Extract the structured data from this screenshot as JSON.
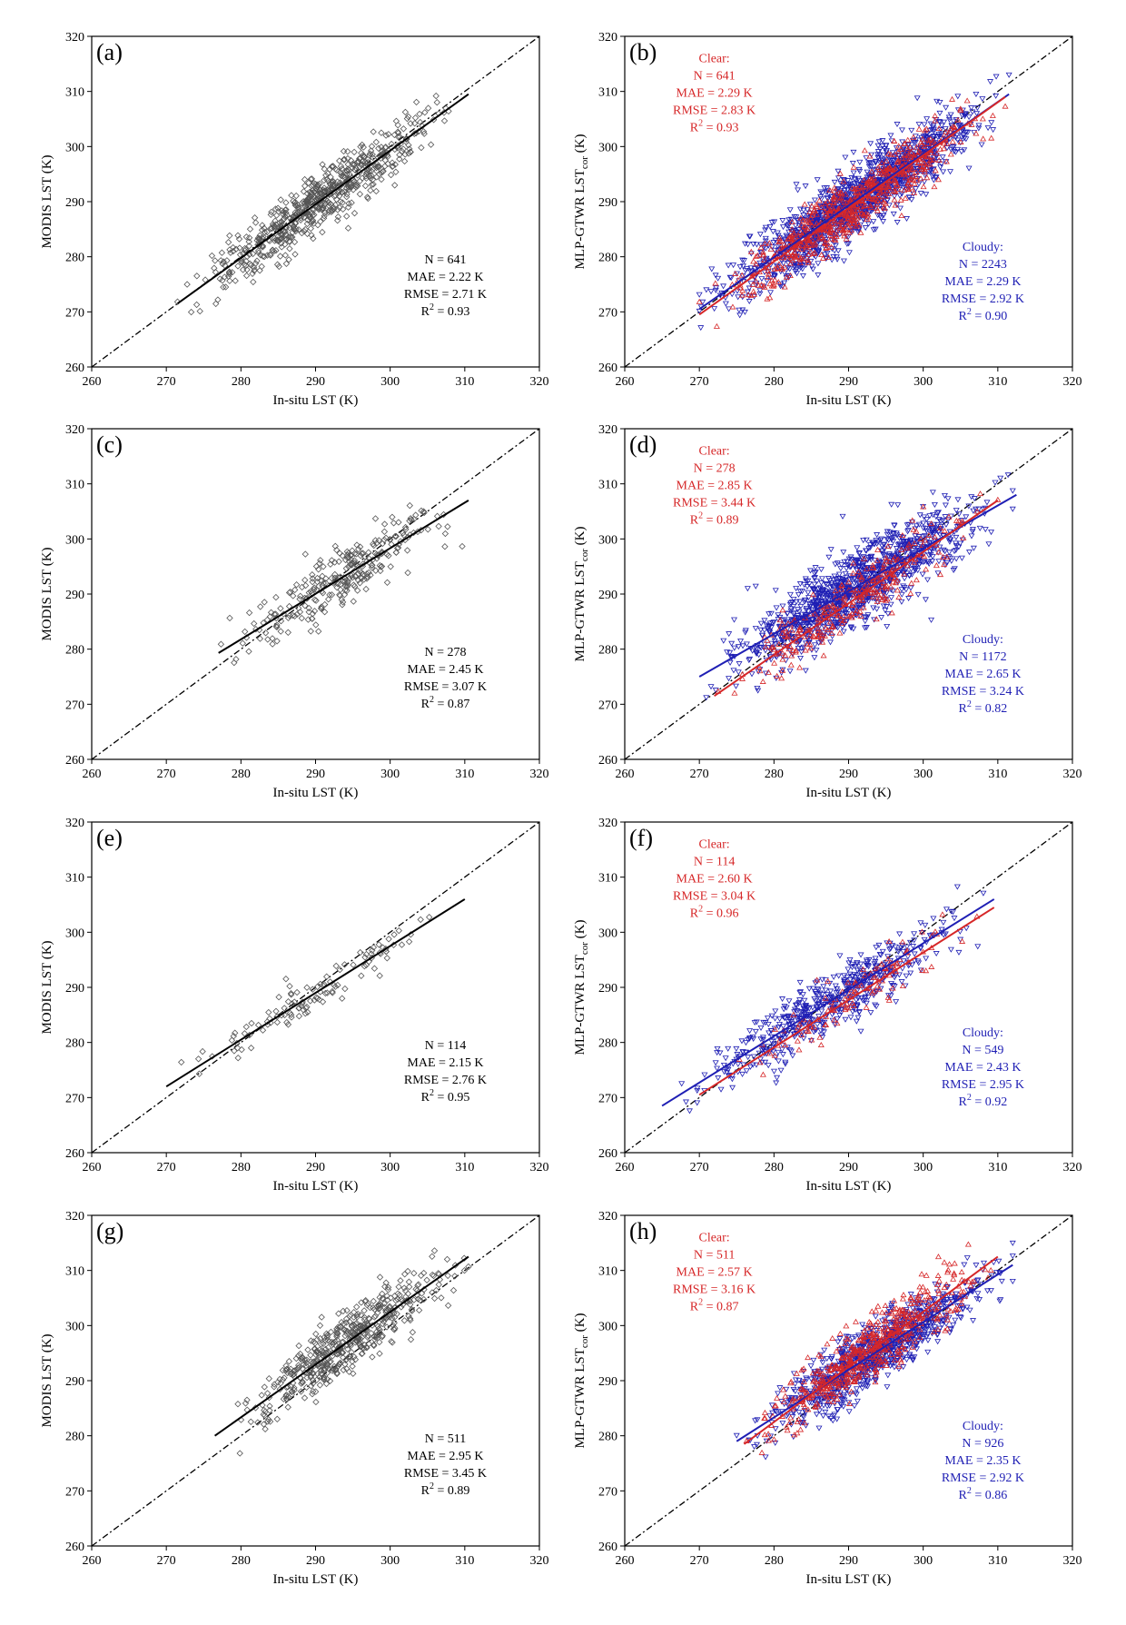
{
  "figure": {
    "x_label": "In-situ LST (K)",
    "y_label_modis": "MODIS LST (K)",
    "y_label_mlp_main": "MLP-GTWR LST",
    "y_label_mlp_sub": "cor",
    "y_label_mlp_unit": " (K)",
    "colors": {
      "clear": "#d62728",
      "cloudy": "#1f1fb4",
      "modis": "#555555"
    }
  },
  "chart_data": [
    {
      "type": "scatter",
      "panel": "(a)",
      "method": "MODIS",
      "xlim": [
        260,
        320
      ],
      "ylim": [
        260,
        320
      ],
      "xticks": [
        260,
        270,
        280,
        290,
        300,
        310,
        320
      ],
      "yticks": [
        260,
        270,
        280,
        290,
        300,
        310,
        320
      ],
      "xlabel": "In-situ LST (K)",
      "ylabel": "MODIS LST (K)",
      "one_to_one": true,
      "series": [
        {
          "style": "modis",
          "n_value": 641,
          "x_range": [
            271.5,
            310.5
          ],
          "spread": 3.6,
          "fit": [
            [
              271.5,
              271.5
            ],
            [
              310.5,
              309.5
            ]
          ]
        }
      ],
      "stats": [
        {
          "style": "modis",
          "n_label": "N = 641",
          "mae": "MAE = 2.22 K",
          "rmse": "RMSE = 2.71 K",
          "r2_main": "R",
          "r2_sup": "2",
          "r2_value": " = 0.93"
        }
      ]
    },
    {
      "type": "scatter",
      "panel": "(b)",
      "method": "MLP-GTWR",
      "xlim": [
        260,
        320
      ],
      "ylim": [
        260,
        320
      ],
      "xticks": [
        260,
        270,
        280,
        290,
        300,
        310,
        320
      ],
      "yticks": [
        260,
        270,
        280,
        290,
        300,
        310,
        320
      ],
      "xlabel": "In-situ LST (K)",
      "ylabel": "MLP-GTWR LSTcor (K)",
      "one_to_one": true,
      "series": [
        {
          "style": "cloudy",
          "n_value": 2243,
          "x_range": [
            270,
            311.5
          ],
          "spread": 4.2,
          "fit": [
            [
              270,
              270.5
            ],
            [
              311.5,
              309.5
            ]
          ]
        },
        {
          "style": "clear",
          "n_value": 641,
          "x_range": [
            270,
            311
          ],
          "spread": 3.6,
          "fit": [
            [
              270,
              269.5
            ],
            [
              311,
              309
            ]
          ]
        }
      ],
      "stats": [
        {
          "style": "clear",
          "title": "Clear:",
          "n_label": "N = 641",
          "mae": "MAE = 2.29 K",
          "rmse": "RMSE = 2.83 K",
          "r2_main": "R",
          "r2_sup": "2",
          "r2_value": " = 0.93"
        },
        {
          "style": "cloudy",
          "title": "Cloudy:",
          "n_label": "N = 2243",
          "mae": "MAE = 2.29 K",
          "rmse": "RMSE = 2.92 K",
          "r2_main": "R",
          "r2_sup": "2",
          "r2_value": " = 0.90"
        }
      ]
    },
    {
      "type": "scatter",
      "panel": "(c)",
      "method": "MODIS",
      "xlim": [
        260,
        320
      ],
      "ylim": [
        260,
        320
      ],
      "xticks": [
        260,
        270,
        280,
        290,
        300,
        310,
        320
      ],
      "yticks": [
        260,
        270,
        280,
        290,
        300,
        310,
        320
      ],
      "xlabel": "In-situ LST (K)",
      "ylabel": "MODIS LST (K)",
      "one_to_one": true,
      "series": [
        {
          "style": "modis",
          "n_value": 278,
          "x_range": [
            277,
            310
          ],
          "spread": 3.6,
          "fit": [
            [
              277,
              279.3
            ],
            [
              310.5,
              307
            ]
          ]
        }
      ],
      "stats": [
        {
          "style": "modis",
          "n_label": "N = 278",
          "mae": "MAE = 2.45 K",
          "rmse": "RMSE = 3.07 K",
          "r2_main": "R",
          "r2_sup": "2",
          "r2_value": " = 0.87"
        }
      ]
    },
    {
      "type": "scatter",
      "panel": "(d)",
      "method": "MLP-GTWR",
      "xlim": [
        260,
        320
      ],
      "ylim": [
        260,
        320
      ],
      "xticks": [
        260,
        270,
        280,
        290,
        300,
        310,
        320
      ],
      "yticks": [
        260,
        270,
        280,
        290,
        300,
        310,
        320
      ],
      "xlabel": "In-situ LST (K)",
      "ylabel": "MLP-GTWR LSTcor (K)",
      "one_to_one": true,
      "series": [
        {
          "style": "cloudy",
          "n_value": 1172,
          "x_range": [
            270,
            312
          ],
          "spread": 4.6,
          "fit": [
            [
              270,
              275
            ],
            [
              312.5,
              308
            ]
          ]
        },
        {
          "style": "clear",
          "n_value": 278,
          "x_range": [
            272,
            310
          ],
          "spread": 4.0,
          "fit": [
            [
              272,
              271.5
            ],
            [
              310,
              307
            ]
          ]
        }
      ],
      "stats": [
        {
          "style": "clear",
          "title": "Clear:",
          "n_label": "N = 278",
          "mae": "MAE = 2.85 K",
          "rmse": "RMSE = 3.44 K",
          "r2_main": "R",
          "r2_sup": "2",
          "r2_value": " = 0.89"
        },
        {
          "style": "cloudy",
          "title": "Cloudy:",
          "n_label": "N = 1172",
          "mae": "MAE = 2.65 K",
          "rmse": "RMSE = 3.24 K",
          "r2_main": "R",
          "r2_sup": "2",
          "r2_value": " = 0.82"
        }
      ]
    },
    {
      "type": "scatter",
      "panel": "(e)",
      "method": "MODIS",
      "xlim": [
        260,
        320
      ],
      "ylim": [
        260,
        320
      ],
      "xticks": [
        260,
        270,
        280,
        290,
        300,
        310,
        320
      ],
      "yticks": [
        260,
        270,
        280,
        290,
        300,
        310,
        320
      ],
      "xlabel": "In-situ LST (K)",
      "ylabel": "MODIS LST (K)",
      "one_to_one": true,
      "series": [
        {
          "style": "modis",
          "n_value": 114,
          "x_range": [
            270,
            310
          ],
          "spread": 2.6,
          "fit": [
            [
              270,
              272
            ],
            [
              310,
              306
            ]
          ]
        }
      ],
      "stats": [
        {
          "style": "modis",
          "n_label": "N = 114",
          "mae": "MAE = 2.15 K",
          "rmse": "RMSE = 2.76 K",
          "r2_main": "R",
          "r2_sup": "2",
          "r2_value": " = 0.95"
        }
      ]
    },
    {
      "type": "scatter",
      "panel": "(f)",
      "method": "MLP-GTWR",
      "xlim": [
        260,
        320
      ],
      "ylim": [
        260,
        320
      ],
      "xticks": [
        260,
        270,
        280,
        290,
        300,
        310,
        320
      ],
      "yticks": [
        260,
        270,
        280,
        290,
        300,
        310,
        320
      ],
      "xlabel": "In-situ LST (K)",
      "ylabel": "MLP-GTWR LSTcor (K)",
      "one_to_one": true,
      "series": [
        {
          "style": "cloudy",
          "n_value": 549,
          "x_range": [
            265,
            310
          ],
          "spread": 3.6,
          "fit": [
            [
              265,
              268.5
            ],
            [
              309.5,
              306
            ]
          ]
        },
        {
          "style": "clear",
          "n_value": 114,
          "x_range": [
            270,
            310
          ],
          "spread": 3.2,
          "fit": [
            [
              270,
              270.5
            ],
            [
              309.5,
              304.5
            ]
          ]
        }
      ],
      "stats": [
        {
          "style": "clear",
          "title": "Clear:",
          "n_label": "N = 114",
          "mae": "MAE = 2.60 K",
          "rmse": "RMSE = 3.04 K",
          "r2_main": "R",
          "r2_sup": "2",
          "r2_value": " = 0.96"
        },
        {
          "style": "cloudy",
          "title": "Cloudy:",
          "n_label": "N = 549",
          "mae": "MAE = 2.43 K",
          "rmse": "RMSE = 2.95 K",
          "r2_main": "R",
          "r2_sup": "2",
          "r2_value": " = 0.92"
        }
      ]
    },
    {
      "type": "scatter",
      "panel": "(g)",
      "method": "MODIS",
      "xlim": [
        260,
        320
      ],
      "ylim": [
        260,
        320
      ],
      "xticks": [
        260,
        270,
        280,
        290,
        300,
        310,
        320
      ],
      "yticks": [
        260,
        270,
        280,
        290,
        300,
        310,
        320
      ],
      "xlabel": "In-situ LST (K)",
      "ylabel": "MODIS LST (K)",
      "one_to_one": true,
      "series": [
        {
          "style": "modis",
          "n_value": 511,
          "x_range": [
            276.5,
            310.5
          ],
          "spread": 3.8,
          "fit": [
            [
              276.5,
              280
            ],
            [
              310.5,
              312.5
            ]
          ]
        }
      ],
      "stats": [
        {
          "style": "modis",
          "n_label": "N = 511",
          "mae": "MAE = 2.95 K",
          "rmse": "RMSE = 3.45 K",
          "r2_main": "R",
          "r2_sup": "2",
          "r2_value": " = 0.89"
        }
      ]
    },
    {
      "type": "scatter",
      "panel": "(h)",
      "method": "MLP-GTWR",
      "xlim": [
        260,
        320
      ],
      "ylim": [
        260,
        320
      ],
      "xticks": [
        260,
        270,
        280,
        290,
        300,
        310,
        320
      ],
      "yticks": [
        260,
        270,
        280,
        290,
        300,
        310,
        320
      ],
      "xlabel": "In-situ LST (K)",
      "ylabel": "MLP-GTWR LSTcor (K)",
      "one_to_one": true,
      "series": [
        {
          "style": "cloudy",
          "n_value": 926,
          "x_range": [
            275,
            312
          ],
          "spread": 3.6,
          "fit": [
            [
              275,
              279
            ],
            [
              312,
              311
            ]
          ]
        },
        {
          "style": "clear",
          "n_value": 511,
          "x_range": [
            276,
            310
          ],
          "spread": 3.6,
          "fit": [
            [
              276,
              278.5
            ],
            [
              310,
              312.5
            ]
          ]
        }
      ],
      "stats": [
        {
          "style": "clear",
          "title": "Clear:",
          "n_label": "N = 511",
          "mae": "MAE = 2.57 K",
          "rmse": "RMSE = 3.16 K",
          "r2_main": "R",
          "r2_sup": "2",
          "r2_value": " = 0.87"
        },
        {
          "style": "cloudy",
          "title": "Cloudy:",
          "n_label": "N = 926",
          "mae": "MAE = 2.35 K",
          "rmse": "RMSE = 2.92 K",
          "r2_main": "R",
          "r2_sup": "2",
          "r2_value": " = 0.86"
        }
      ]
    }
  ]
}
